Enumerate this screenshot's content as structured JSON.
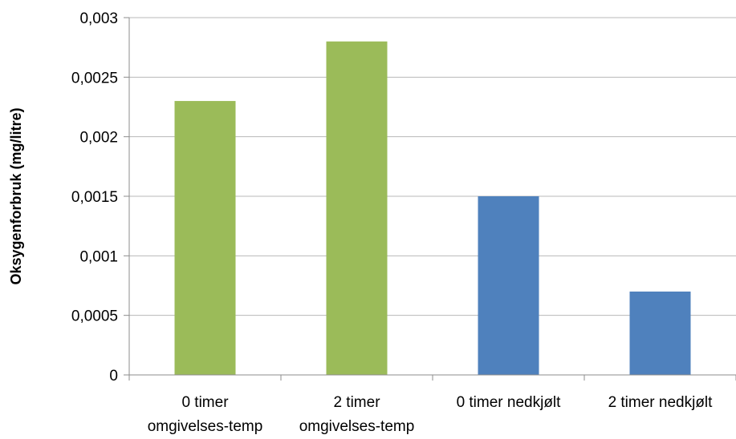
{
  "chart_data": {
    "type": "bar",
    "categories": [
      [
        "0 timer",
        "omgivelses-temp"
      ],
      [
        "2 timer",
        "omgivelses-temp"
      ],
      [
        "0 timer nedkjølt"
      ],
      [
        "2 timer nedkjølt"
      ]
    ],
    "values": [
      0.0023,
      0.0028,
      0.0015,
      0.0007
    ],
    "bar_colors": [
      "#9bbb59",
      "#9bbb59",
      "#4f81bd",
      "#4f81bd"
    ],
    "title": "",
    "xlabel": "",
    "ylabel": "Oksygenforbruk (mg/litre)",
    "ylim": [
      0,
      0.003
    ],
    "yticks": [
      0,
      0.0005,
      0.001,
      0.0015,
      0.002,
      0.0025,
      0.003
    ],
    "ytick_labels": [
      "0",
      "0,0005",
      "0,001",
      "0,0015",
      "0,002",
      "0,0025",
      "0,003"
    ],
    "grid": true,
    "legend": "none"
  }
}
